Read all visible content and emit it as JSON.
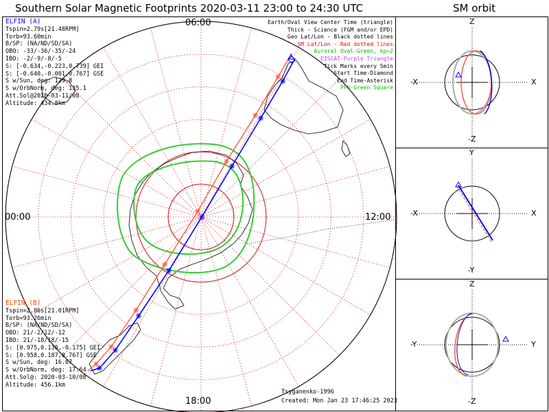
{
  "title": "Southern Solar Magnetic Footprints 2020-03-11 23:00 to 24:30 UTC",
  "orbit_title": "SM orbit",
  "clock": {
    "top": "06:00",
    "left": "00:00",
    "right": "12:00",
    "bottom": "18:00"
  },
  "elfin_a": {
    "name": "ELFIN (A)",
    "lines": [
      "Tspin=2.79s[21.48RPM]",
      "Torb=93.60min",
      "B/SP: (NA/ND/SD/SA)",
      "OBO: -33/-36/-35/-24",
      "IBO: -2/-9/-8/-5",
      "S: [-0.634,-0.223,0.739] GEI",
      "S: [-0.640,-0.001,0.767] GSE",
      "S w/Sun, deg: 129.8",
      "S w/OrbNorm, deg: 135.1",
      "Att.Sol@2020-03-11/08",
      "Altitude: 434.8km"
    ],
    "color": "#0000ff"
  },
  "elfin_b": {
    "name": "ELFIN (B)",
    "lines": [
      "Tspin=2.86s[21.01RPM]",
      "Torb=93.26min",
      "B/SP: (NA/ND/SD/SA)",
      "OBO: 21/-2/12/-12",
      "IBO: 21/-18/18/-15",
      "S: [0.975,0.130,-0.175] GEI",
      "S: [0.958,0.187,0.767] GSE",
      "S w/Sun, deg: 16.67",
      "S w/OrbNorm, deg: 17.64",
      "Att.Sol@: 2020-03-10/08",
      "Altitude: 456.1km"
    ],
    "color": "#ff4400"
  },
  "legend": [
    {
      "text": "Earth/Oval View Center Time (triangle)",
      "color": "#000000"
    },
    {
      "text": "Thick - Science (FGM and/or EPD)",
      "color": "#000000"
    },
    {
      "text": "Geo Lat/Lon - Black dotted lines",
      "color": "#000000"
    },
    {
      "text": "SM Lat/Lon - Red dotted lines",
      "color": "#ff0000"
    },
    {
      "text": "Auroral Oval-Green, kp=2",
      "color": "#00bb00"
    },
    {
      "text": "EISCAT-Purple Triangle",
      "color": "#bb44ff"
    },
    {
      "text": "Tick Marks every 5min",
      "color": "#000000"
    },
    {
      "text": "Start Time-Diamond",
      "color": "#000000"
    },
    {
      "text": "End Time-Asterisk",
      "color": "#000000"
    },
    {
      "text": "PFS-Green Square",
      "color": "#00bb00"
    }
  ],
  "footer": {
    "model": "Tsyganenko-1996",
    "created": "Created: Mon Jan 23 17:46:25 2023"
  },
  "panels": [
    {
      "top": "Z",
      "bottom": "-Z",
      "left": "-X",
      "right": "X"
    },
    {
      "top": "Y",
      "bottom": "-Y",
      "left": "-X",
      "right": "X"
    },
    {
      "top": "Z",
      "bottom": "-Z",
      "left": "-Y",
      "right": "Y"
    }
  ]
}
